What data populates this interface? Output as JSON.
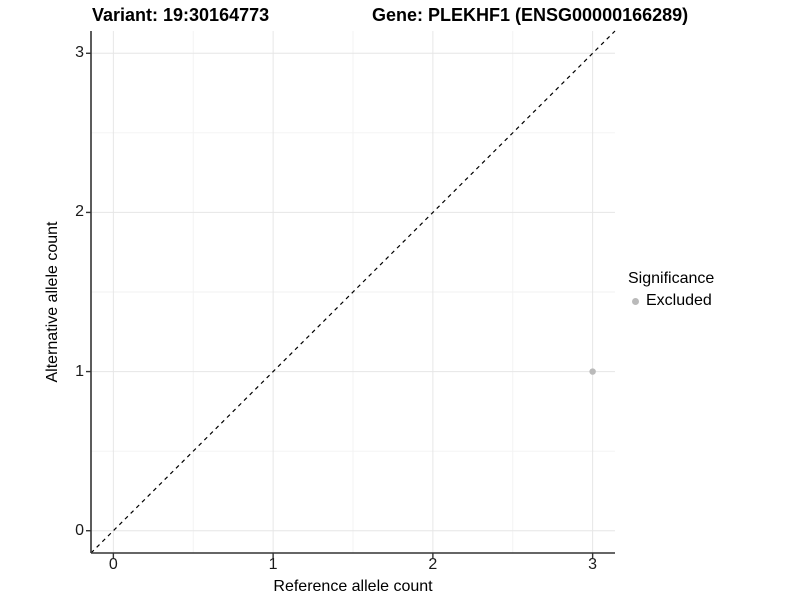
{
  "page": {
    "background": "#ffffff"
  },
  "chart_data": {
    "type": "scatter",
    "title_left": "Variant: 19:30164773",
    "title_right": "Gene: PLEKHF1 (ENSG00000166289)",
    "xlabel": "Reference allele count",
    "ylabel": "Alternative allele count",
    "xlim": [
      -0.14,
      3.14
    ],
    "ylim": [
      -0.14,
      3.14
    ],
    "ticks": {
      "x": [
        0,
        1,
        2,
        3
      ],
      "y": [
        0,
        1,
        2,
        3
      ],
      "minor": [
        0.5,
        1.5,
        2.5
      ]
    },
    "grid": true,
    "reference_line": {
      "type": "identity",
      "from": [
        -0.14,
        -0.14
      ],
      "to": [
        3.14,
        3.14
      ],
      "style": "dashed",
      "color": "#000000"
    },
    "legend": {
      "title": "Significance",
      "position": "right",
      "entries": [
        {
          "label": "Excluded",
          "color": "#bababa"
        }
      ]
    },
    "series": [
      {
        "name": "Excluded",
        "color": "#bababa",
        "marker_radius": 3.2,
        "points": [
          {
            "x": 3,
            "y": 1
          }
        ]
      }
    ],
    "colors": {
      "grid_major": "#e6e6e6",
      "grid_minor": "#f2f2f2",
      "axis": "#333333",
      "tick": "#333333"
    }
  }
}
